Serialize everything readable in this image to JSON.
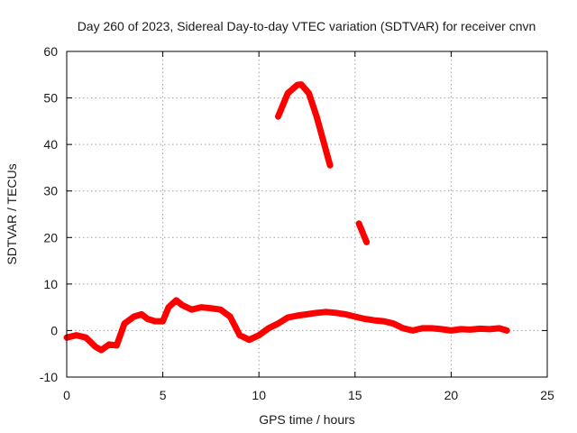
{
  "chart_data": {
    "type": "line",
    "title": "Day 260 of 2023, Sidereal Day-to-day VTEC variation (SDTVAR) for receiver cnvn",
    "xlabel": "GPS time / hours",
    "ylabel": "SDTVAR / TECUs",
    "xlim": [
      0,
      25
    ],
    "ylim": [
      -10,
      60
    ],
    "xticks": [
      0,
      5,
      10,
      15,
      20,
      25
    ],
    "xtick_labels": [
      "0",
      "5",
      "10",
      "15",
      "20",
      "25"
    ],
    "yticks": [
      -10,
      0,
      10,
      20,
      30,
      40,
      50,
      60
    ],
    "ytick_labels": [
      "-10",
      "0",
      "10",
      "20",
      "30",
      "40",
      "50",
      "60"
    ],
    "grid": true,
    "legend": "none",
    "series": [
      {
        "name": "main",
        "color": "#ff0000",
        "x": [
          0,
          0.5,
          1.0,
          1.5,
          1.8,
          2.2,
          2.6,
          3.0,
          3.5,
          3.9,
          4.2,
          4.6,
          5.0,
          5.3,
          5.7,
          6.0,
          6.5,
          7.0,
          7.5,
          8.0,
          8.5,
          9.0,
          9.5,
          10.0,
          10.5,
          11.0,
          11.5,
          12.0,
          12.5,
          13.0,
          13.5,
          14.0,
          14.5,
          15.0,
          15.5,
          16.0,
          16.5,
          17.0,
          17.5,
          18.0,
          18.5,
          19.0,
          19.5,
          20.0,
          20.5,
          21.0,
          21.5,
          22.0,
          22.5,
          22.9
        ],
        "y": [
          -1.5,
          -1,
          -1.5,
          -3.5,
          -4.2,
          -3.0,
          -3.2,
          1.5,
          3.0,
          3.5,
          2.5,
          2.0,
          2.0,
          5.0,
          6.5,
          5.5,
          4.5,
          5.0,
          4.8,
          4.5,
          3.0,
          -1.0,
          -2.0,
          -1.0,
          0.5,
          1.5,
          2.8,
          3.2,
          3.5,
          3.8,
          4.0,
          3.8,
          3.5,
          3.0,
          2.5,
          2.2,
          2.0,
          1.5,
          0.5,
          0.0,
          0.5,
          0.5,
          0.3,
          0.0,
          0.3,
          0.2,
          0.4,
          0.3,
          0.5,
          0.0
        ]
      },
      {
        "name": "segment-2",
        "color": "#ff0000",
        "x": [
          11.0,
          11.5,
          12.0,
          12.2,
          12.6,
          13.0,
          13.4,
          13.7
        ],
        "y": [
          46,
          51,
          52.8,
          52.9,
          51,
          46,
          40,
          35.5
        ]
      },
      {
        "name": "segment-3",
        "color": "#ff0000",
        "x": [
          15.2,
          15.6
        ],
        "y": [
          23,
          19
        ]
      }
    ]
  }
}
